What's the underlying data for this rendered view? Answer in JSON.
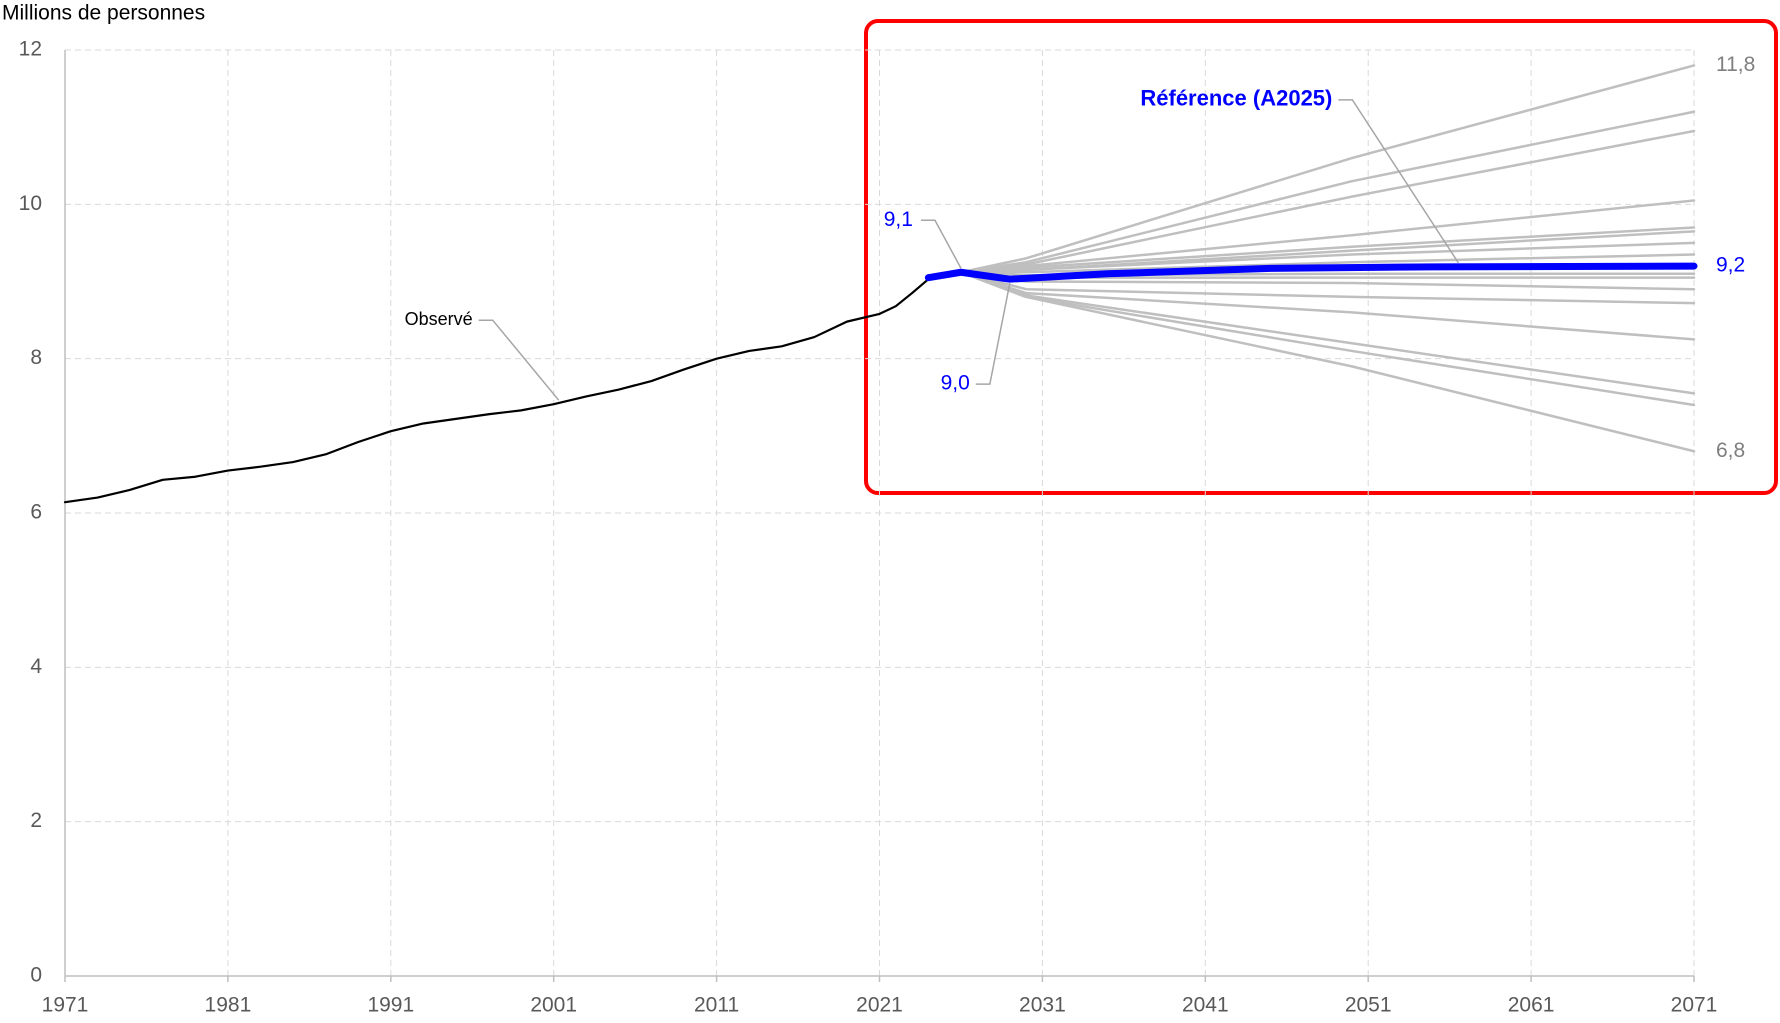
{
  "chart_data": {
    "type": "line",
    "y_axis_label": "Millions de personnes",
    "xlim": [
      1971,
      2071
    ],
    "xticks": [
      1971,
      1981,
      1991,
      2001,
      2011,
      2021,
      2031,
      2041,
      2051,
      2061,
      2071
    ],
    "ylim": [
      0,
      12
    ],
    "yticks": [
      0,
      2,
      4,
      6,
      8,
      10,
      12
    ],
    "grid": true,
    "series": [
      {
        "color": "#bfbfbf",
        "x": [
          2026,
          2030,
          2050,
          2071
        ],
        "values": [
          9.12,
          9.3,
          10.6,
          11.8
        ],
        "value_labels": [
          null,
          null,
          null,
          "11,8"
        ]
      },
      {
        "color": "#bfbfbf",
        "x": [
          2026,
          2030,
          2050,
          2071
        ],
        "values": [
          9.12,
          9.25,
          10.3,
          11.2
        ]
      },
      {
        "color": "#bfbfbf",
        "x": [
          2026,
          2030,
          2050,
          2071
        ],
        "values": [
          9.12,
          9.22,
          10.1,
          10.95
        ]
      },
      {
        "color": "#bfbfbf",
        "x": [
          2026,
          2030,
          2050,
          2071
        ],
        "values": [
          9.12,
          9.2,
          9.6,
          10.05
        ]
      },
      {
        "color": "#bfbfbf",
        "x": [
          2026,
          2030,
          2050,
          2071
        ],
        "values": [
          9.12,
          9.18,
          9.45,
          9.7
        ]
      },
      {
        "color": "#bfbfbf",
        "x": [
          2026,
          2030,
          2050,
          2071
        ],
        "values": [
          9.12,
          9.15,
          9.4,
          9.65
        ]
      },
      {
        "color": "#bfbfbf",
        "x": [
          2026,
          2030,
          2050,
          2071
        ],
        "values": [
          9.12,
          9.15,
          9.35,
          9.5
        ]
      },
      {
        "color": "#bfbfbf",
        "x": [
          2026,
          2030,
          2050,
          2071
        ],
        "values": [
          9.12,
          9.12,
          9.25,
          9.35
        ]
      },
      {
        "color": "#bfbfbf",
        "x": [
          2026,
          2030,
          2050,
          2071
        ],
        "values": [
          9.12,
          9.08,
          9.1,
          9.1
        ]
      },
      {
        "color": "#bfbfbf",
        "x": [
          2026,
          2030,
          2050,
          2071
        ],
        "values": [
          9.12,
          9.05,
          9.05,
          9.05
        ]
      },
      {
        "color": "#bfbfbf",
        "x": [
          2026,
          2030,
          2050,
          2071
        ],
        "values": [
          9.12,
          9.0,
          8.98,
          8.9
        ]
      },
      {
        "color": "#bfbfbf",
        "x": [
          2026,
          2030,
          2050,
          2071
        ],
        "values": [
          9.12,
          8.9,
          8.8,
          8.72
        ]
      },
      {
        "color": "#bfbfbf",
        "x": [
          2026,
          2030,
          2050,
          2071
        ],
        "values": [
          9.12,
          8.85,
          8.6,
          8.25
        ]
      },
      {
        "color": "#bfbfbf",
        "x": [
          2026,
          2030,
          2050,
          2071
        ],
        "values": [
          9.12,
          8.82,
          8.2,
          7.55
        ]
      },
      {
        "color": "#bfbfbf",
        "x": [
          2026,
          2030,
          2050,
          2071
        ],
        "values": [
          9.12,
          8.8,
          8.1,
          7.4
        ]
      },
      {
        "color": "#bfbfbf",
        "x": [
          2026,
          2030,
          2050,
          2071
        ],
        "values": [
          9.12,
          8.8,
          7.9,
          6.8
        ],
        "value_labels": [
          null,
          null,
          null,
          "6,8"
        ]
      },
      {
        "name": "Observé",
        "color": "#000000",
        "x": [
          1971,
          1973,
          1975,
          1977,
          1979,
          1981,
          1983,
          1985,
          1987,
          1989,
          1991,
          1993,
          1995,
          1997,
          1999,
          2001,
          2003,
          2005,
          2007,
          2009,
          2011,
          2013,
          2015,
          2017,
          2019,
          2021,
          2022,
          2023,
          2024,
          2025
        ],
        "values": [
          6.14,
          6.2,
          6.3,
          6.43,
          6.47,
          6.55,
          6.6,
          6.66,
          6.76,
          6.92,
          7.06,
          7.16,
          7.22,
          7.28,
          7.33,
          7.41,
          7.51,
          7.6,
          7.71,
          7.86,
          8.0,
          8.1,
          8.16,
          8.28,
          8.48,
          8.58,
          8.68,
          8.85,
          9.03,
          9.1
        ]
      },
      {
        "name": "Référence (A2025)",
        "color": "#0000ff",
        "x": [
          2024,
          2026,
          2029,
          2035,
          2045,
          2055,
          2071
        ],
        "values": [
          9.05,
          9.12,
          9.03,
          9.1,
          9.17,
          9.19,
          9.2
        ],
        "value_labels": [
          null,
          "9,1",
          "9,0",
          null,
          null,
          null,
          "9,2"
        ]
      }
    ]
  }
}
